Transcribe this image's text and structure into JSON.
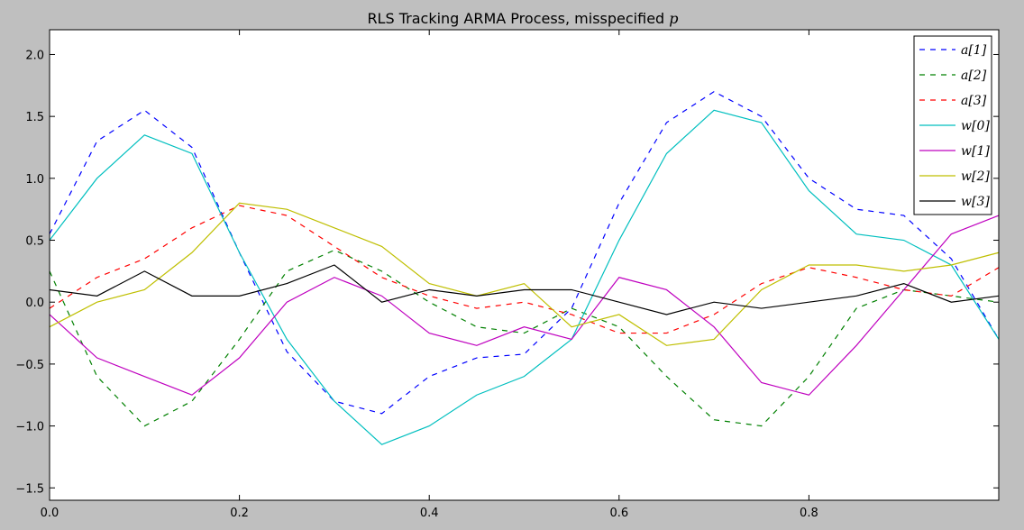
{
  "chart_data": {
    "type": "line",
    "title": "RLS Tracking ARMA Process, misspecified",
    "title_math_symbol": "p",
    "xlabel": "",
    "ylabel": "",
    "xlim": [
      0.0,
      1.0
    ],
    "ylim": [
      -1.6,
      2.2
    ],
    "x_ticks": [
      0.0,
      0.2,
      0.4,
      0.6,
      0.8
    ],
    "x_tick_labels": [
      "0.0",
      "0.2",
      "0.4",
      "0.6",
      "0.8"
    ],
    "y_ticks": [
      -1.5,
      -1.0,
      -0.5,
      0.0,
      0.5,
      1.0,
      1.5,
      2.0
    ],
    "y_tick_labels": [
      "−1.5",
      "−1.0",
      "−0.5",
      "0.0",
      "0.5",
      "1.0",
      "1.5",
      "2.0"
    ],
    "grid": false,
    "legend_position": "top-right",
    "x": [
      0.0,
      0.05,
      0.1,
      0.15,
      0.2,
      0.25,
      0.3,
      0.35,
      0.4,
      0.45,
      0.5,
      0.55,
      0.6,
      0.65,
      0.7,
      0.75,
      0.8,
      0.85,
      0.9,
      0.95,
      1.0
    ],
    "series": [
      {
        "name": "a[1]",
        "color": "#0000ff",
        "dash": "dashed",
        "values": [
          0.55,
          1.3,
          1.55,
          1.25,
          0.4,
          -0.4,
          -0.8,
          -0.9,
          -0.6,
          -0.45,
          -0.42,
          -0.05,
          0.8,
          1.45,
          1.7,
          1.5,
          1.0,
          0.75,
          0.7,
          0.35,
          -0.3
        ]
      },
      {
        "name": "a[2]",
        "color": "#008000",
        "dash": "dashed",
        "values": [
          0.25,
          -0.6,
          -1.0,
          -0.8,
          -0.3,
          0.25,
          0.42,
          0.25,
          0.0,
          -0.2,
          -0.25,
          -0.05,
          -0.2,
          -0.6,
          -0.95,
          -1.0,
          -0.6,
          -0.05,
          0.1,
          0.05,
          0.0
        ]
      },
      {
        "name": "a[3]",
        "color": "#ff0000",
        "dash": "dashed",
        "values": [
          -0.05,
          0.2,
          0.35,
          0.6,
          0.78,
          0.7,
          0.45,
          0.2,
          0.05,
          -0.05,
          0.0,
          -0.1,
          -0.25,
          -0.25,
          -0.1,
          0.15,
          0.28,
          0.2,
          0.1,
          0.05,
          0.28
        ]
      },
      {
        "name": "w[0]",
        "color": "#00bfbf",
        "dash": "solid",
        "values": [
          0.5,
          1.0,
          1.35,
          1.2,
          0.4,
          -0.3,
          -0.8,
          -1.15,
          -1.0,
          -0.75,
          -0.6,
          -0.3,
          0.5,
          1.2,
          1.55,
          1.45,
          0.9,
          0.55,
          0.5,
          0.3,
          -0.3
        ]
      },
      {
        "name": "w[1]",
        "color": "#bf00bf",
        "dash": "solid",
        "values": [
          -0.1,
          -0.45,
          -0.6,
          -0.75,
          -0.45,
          0.0,
          0.2,
          0.05,
          -0.25,
          -0.35,
          -0.2,
          -0.3,
          0.2,
          0.1,
          -0.2,
          -0.65,
          -0.75,
          -0.35,
          0.1,
          0.55,
          0.7
        ]
      },
      {
        "name": "w[2]",
        "color": "#bfbf00",
        "dash": "solid",
        "values": [
          -0.2,
          0.0,
          0.1,
          0.4,
          0.8,
          0.75,
          0.6,
          0.45,
          0.15,
          0.05,
          0.15,
          -0.2,
          -0.1,
          -0.35,
          -0.3,
          0.1,
          0.3,
          0.3,
          0.25,
          0.3,
          0.4
        ]
      },
      {
        "name": "w[3]",
        "color": "#000000",
        "dash": "solid",
        "values": [
          0.1,
          0.05,
          0.25,
          0.05,
          0.05,
          0.15,
          0.3,
          0.0,
          0.1,
          0.05,
          0.1,
          0.1,
          0.0,
          -0.1,
          0.0,
          -0.05,
          0.0,
          0.05,
          0.15,
          0.0,
          0.05
        ]
      }
    ]
  }
}
